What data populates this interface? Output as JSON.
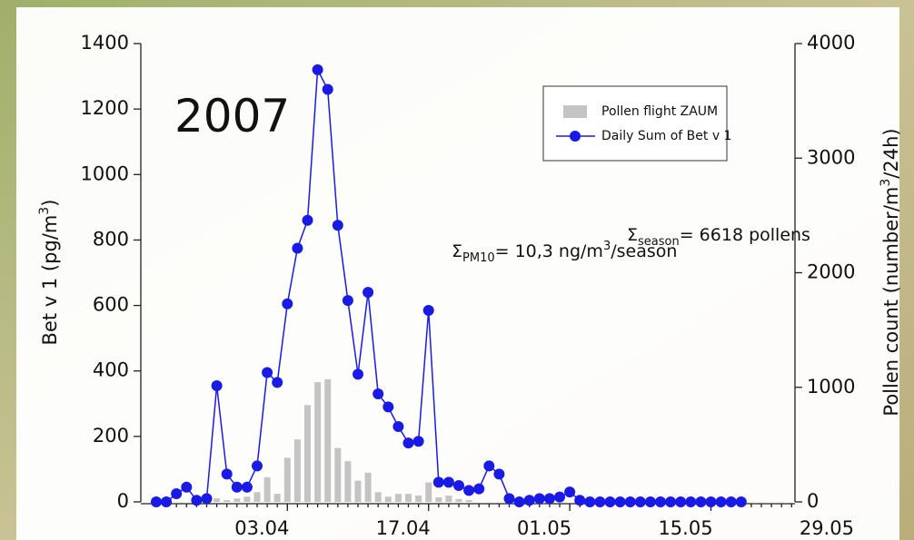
{
  "chart_data": {
    "type": "bar-line",
    "annotations": {
      "year": "2007",
      "season": {
        "sigma": "Σ",
        "sub": "season",
        "text": "= 6618 pollens"
      },
      "pm10": {
        "sigma": "Σ",
        "sub": "PM10",
        "text": "= 10,3 ng/m",
        "sup": "3",
        "tail": "/season"
      }
    },
    "y_label": {
      "text": "Bet v 1 (pg/m",
      "sup": "3",
      "tail": ")"
    },
    "y2_label": {
      "text": "Pollen count (number/m",
      "sup": "3",
      "tail": "/24h)"
    },
    "categories": [
      null,
      null,
      null,
      null,
      null,
      null,
      null,
      null,
      null,
      null,
      null,
      null,
      null,
      "03.04",
      null,
      null,
      null,
      null,
      null,
      null,
      null,
      null,
      null,
      null,
      null,
      null,
      null,
      "17.04",
      null,
      null,
      null,
      null,
      null,
      null,
      null,
      null,
      null,
      null,
      null,
      null,
      null,
      "01.05",
      null,
      null,
      null,
      null,
      null,
      null,
      null,
      null,
      null,
      null,
      null,
      null,
      null,
      "15.05",
      null,
      null,
      null,
      null,
      null,
      null,
      null,
      null,
      null,
      null,
      null,
      null,
      null,
      "29.05"
    ],
    "series": [
      {
        "name": "Pollen flight ZAUM",
        "kind": "bar",
        "axis": "y2",
        "color": "#c4c4c4",
        "values": [
          0,
          0,
          0,
          0,
          0,
          0,
          30,
          15,
          30,
          45,
          85,
          215,
          70,
          385,
          545,
          845,
          1045,
          1070,
          470,
          355,
          185,
          255,
          85,
          45,
          70,
          70,
          55,
          170,
          40,
          55,
          25,
          15,
          0,
          0,
          0,
          0,
          0,
          0,
          0,
          0,
          0,
          0,
          0,
          0,
          0,
          0,
          0,
          0,
          0,
          0,
          0,
          0,
          0,
          0,
          0,
          0,
          0,
          0,
          0,
          null,
          null,
          null,
          null,
          null,
          null,
          null,
          null,
          null,
          null,
          null
        ]
      },
      {
        "name": "Daily Sum of Bet v 1",
        "kind": "line",
        "axis": "y",
        "color": "#1a1ae6",
        "values": [
          0,
          0,
          25,
          45,
          5,
          10,
          355,
          85,
          45,
          45,
          110,
          395,
          365,
          605,
          775,
          860,
          1320,
          1260,
          845,
          615,
          390,
          640,
          330,
          290,
          230,
          180,
          185,
          585,
          60,
          60,
          50,
          35,
          40,
          110,
          85,
          10,
          0,
          5,
          10,
          10,
          15,
          30,
          5,
          0,
          0,
          0,
          0,
          0,
          0,
          0,
          0,
          0,
          0,
          0,
          0,
          0,
          0,
          0,
          0,
          null,
          null,
          null,
          null,
          null,
          null,
          null,
          null,
          null,
          null,
          null
        ]
      }
    ],
    "ylim": [
      0,
      1400
    ],
    "yticks": [
      0,
      200,
      400,
      600,
      800,
      1000,
      1200,
      1400
    ],
    "y2lim": [
      0,
      4000
    ],
    "y2ticks": [
      0,
      1000,
      2000,
      3000,
      4000
    ],
    "legend": "upper right"
  }
}
